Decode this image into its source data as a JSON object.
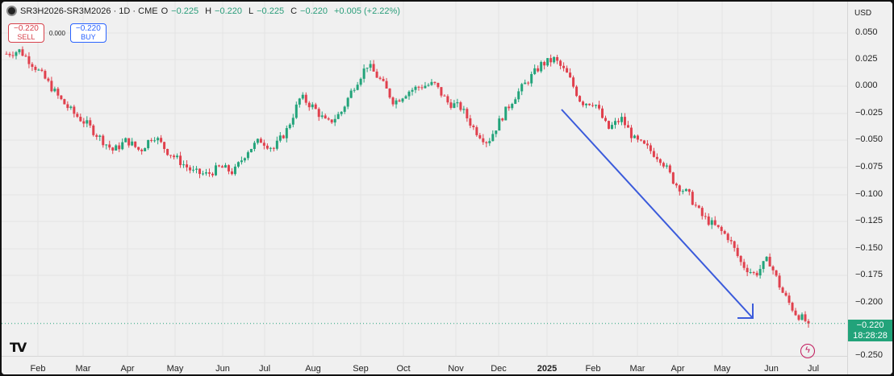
{
  "header": {
    "symbol": "SR3H2026-SR3M2026 · 1D · CME",
    "o_label": "O",
    "o_value": "−0.225",
    "h_label": "H",
    "h_value": "−0.220",
    "l_label": "L",
    "l_value": "−0.225",
    "c_label": "C",
    "c_value": "−0.220",
    "change": "+0.005 (+2.22%)"
  },
  "trade": {
    "sell_price": "−0.220",
    "sell_label": "SELL",
    "spread": "0.000",
    "buy_price": "−0.220",
    "buy_label": "BUY"
  },
  "price_axis": {
    "currency": "USD",
    "ticks": [
      "0.050",
      "0.025",
      "0.000",
      "−0.025",
      "−0.050",
      "−0.075",
      "−0.100",
      "−0.125",
      "−0.150",
      "−0.175",
      "−0.200",
      "−0.250"
    ]
  },
  "time_axis": {
    "labels": [
      "Feb",
      "Mar",
      "Apr",
      "May",
      "Jun",
      "Jul",
      "Aug",
      "Sep",
      "Oct",
      "Nov",
      "Dec",
      "2025",
      "Feb",
      "Mar",
      "Apr",
      "May",
      "Jun",
      "Jul"
    ]
  },
  "last_price": {
    "value": "−0.220",
    "countdown": "18:28:28"
  },
  "colors": {
    "up": "#22a37a",
    "down": "#e0404d",
    "arrow": "#3b5bdb",
    "background": "#f0f0f0"
  },
  "icons": {
    "logo": "tradingview-logo",
    "alert": "lightning-icon"
  },
  "chart_data": {
    "type": "candlestick",
    "instrument": "SR3H2026-SR3M2026",
    "interval": "1D",
    "ylim": [
      -0.25,
      0.06
    ],
    "x": [
      "Feb",
      "Mar",
      "Apr",
      "May",
      "Jun",
      "Jul",
      "Aug",
      "Sep",
      "Oct",
      "Nov",
      "Dec",
      "2025",
      "Feb",
      "Mar",
      "Apr",
      "May",
      "Jun",
      "Jul"
    ],
    "close_path": [
      0.03,
      0.033,
      0.02,
      0.005,
      -0.012,
      -0.025,
      -0.035,
      -0.048,
      -0.06,
      -0.05,
      -0.06,
      -0.045,
      -0.06,
      -0.07,
      -0.08,
      -0.082,
      -0.075,
      -0.08,
      -0.06,
      -0.05,
      -0.058,
      -0.04,
      -0.01,
      -0.02,
      -0.035,
      -0.025,
      0.0,
      0.02,
      0.005,
      -0.015,
      -0.005,
      0.0,
      0.002,
      -0.015,
      -0.02,
      -0.04,
      -0.052,
      -0.03,
      -0.01,
      0.005,
      0.02,
      0.025,
      0.01,
      -0.015,
      -0.015,
      -0.04,
      -0.03,
      -0.05,
      -0.058,
      -0.068,
      -0.09,
      -0.1,
      -0.12,
      -0.13,
      -0.14,
      -0.165,
      -0.175,
      -0.16,
      -0.19,
      -0.21,
      -0.22
    ],
    "last": -0.22,
    "annotation": "down-trend-arrow"
  }
}
